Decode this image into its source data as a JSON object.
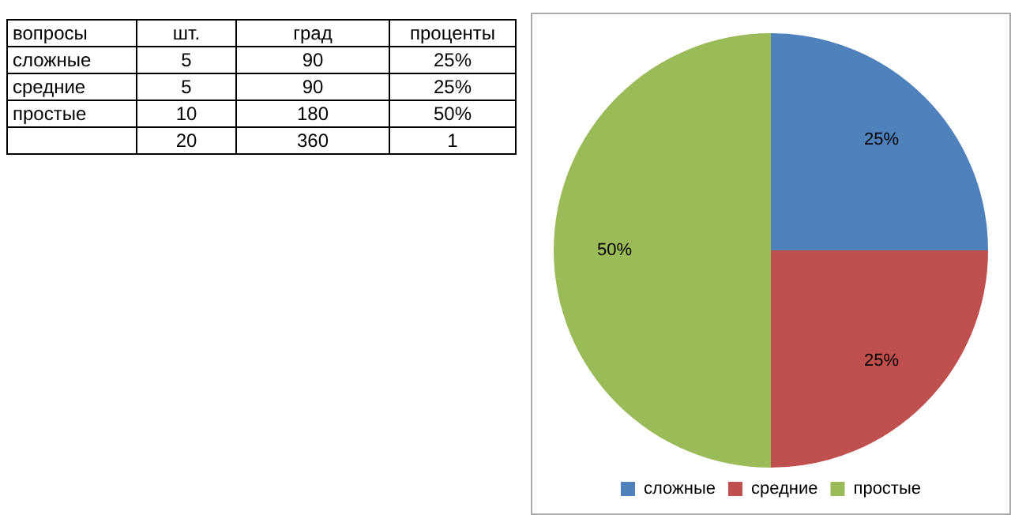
{
  "chart_data": [
    {
      "type": "other",
      "categories": [
        "вопросы",
        "шт.",
        "град",
        "проценты"
      ],
      "annotations": [
        "сложные",
        "5",
        "90",
        "25%",
        "средние",
        "5",
        "90",
        "25%",
        "простые",
        "10",
        "180",
        "50%",
        null,
        "20",
        "360",
        "1"
      ]
    },
    {
      "type": "pie",
      "categories": [
        "сложные",
        "средние",
        "простые"
      ],
      "values": [
        25,
        25,
        50
      ],
      "colors": [
        "#4f81bd",
        "#c0504d",
        "#9bbb59"
      ],
      "value_labels": [
        "25%",
        "25%",
        "50%"
      ],
      "legend": "bottom"
    }
  ]
}
